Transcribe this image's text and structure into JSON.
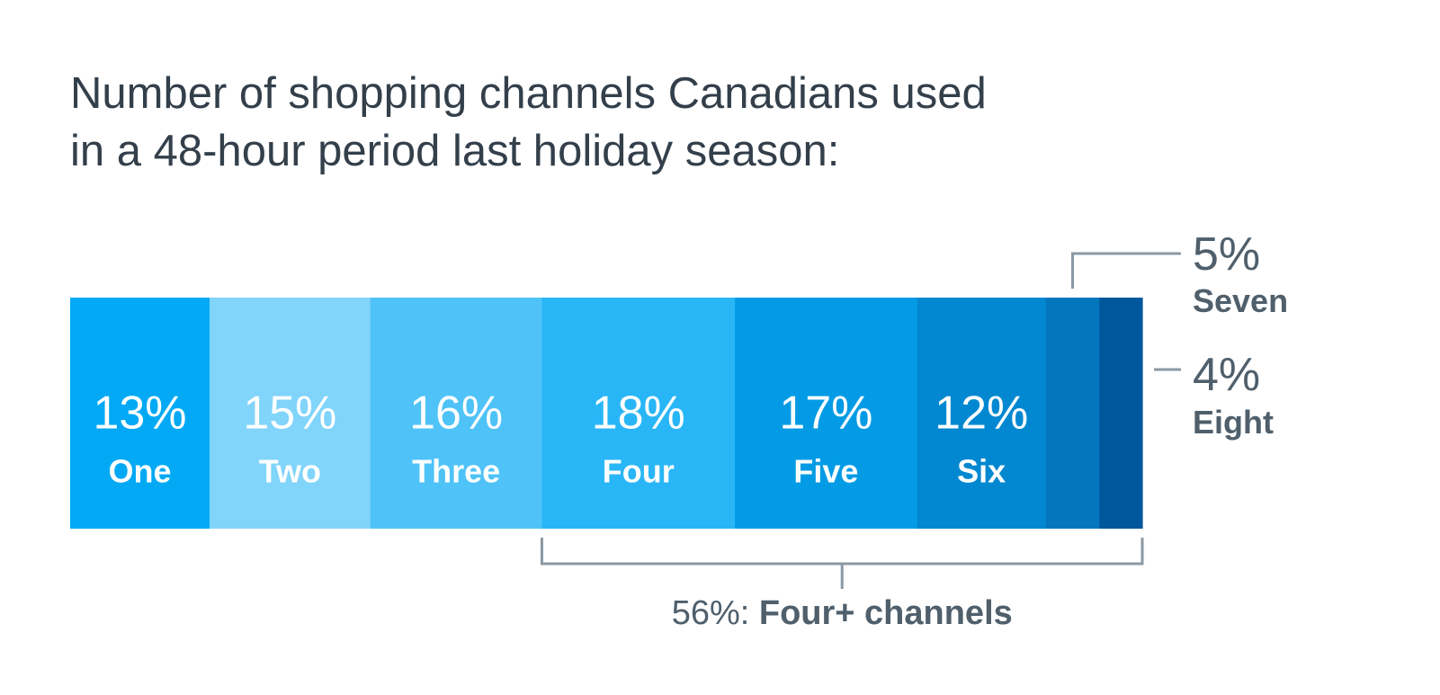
{
  "title": {
    "line1": "Number of shopping channels Canadians used",
    "line2": "in a 48-hour period last holiday season:"
  },
  "chart_data": {
    "type": "bar",
    "orientation": "horizontal-stacked",
    "categories": [
      "One",
      "Two",
      "Three",
      "Four",
      "Five",
      "Six",
      "Seven",
      "Eight"
    ],
    "values": [
      13,
      15,
      16,
      18,
      17,
      12,
      5,
      4
    ],
    "value_labels": [
      "13%",
      "15%",
      "16%",
      "18%",
      "17%",
      "12%",
      "5%",
      "4%"
    ],
    "colors": [
      "#03a9f4",
      "#81d4fa",
      "#4fc3f7",
      "#29b6f6",
      "#039be5",
      "#0288d1",
      "#0277bd",
      "#01579b"
    ],
    "annotation": {
      "value_label": "56%:",
      "text": "Four+ channels",
      "from_category": "Four",
      "to_category": "Eight"
    }
  }
}
